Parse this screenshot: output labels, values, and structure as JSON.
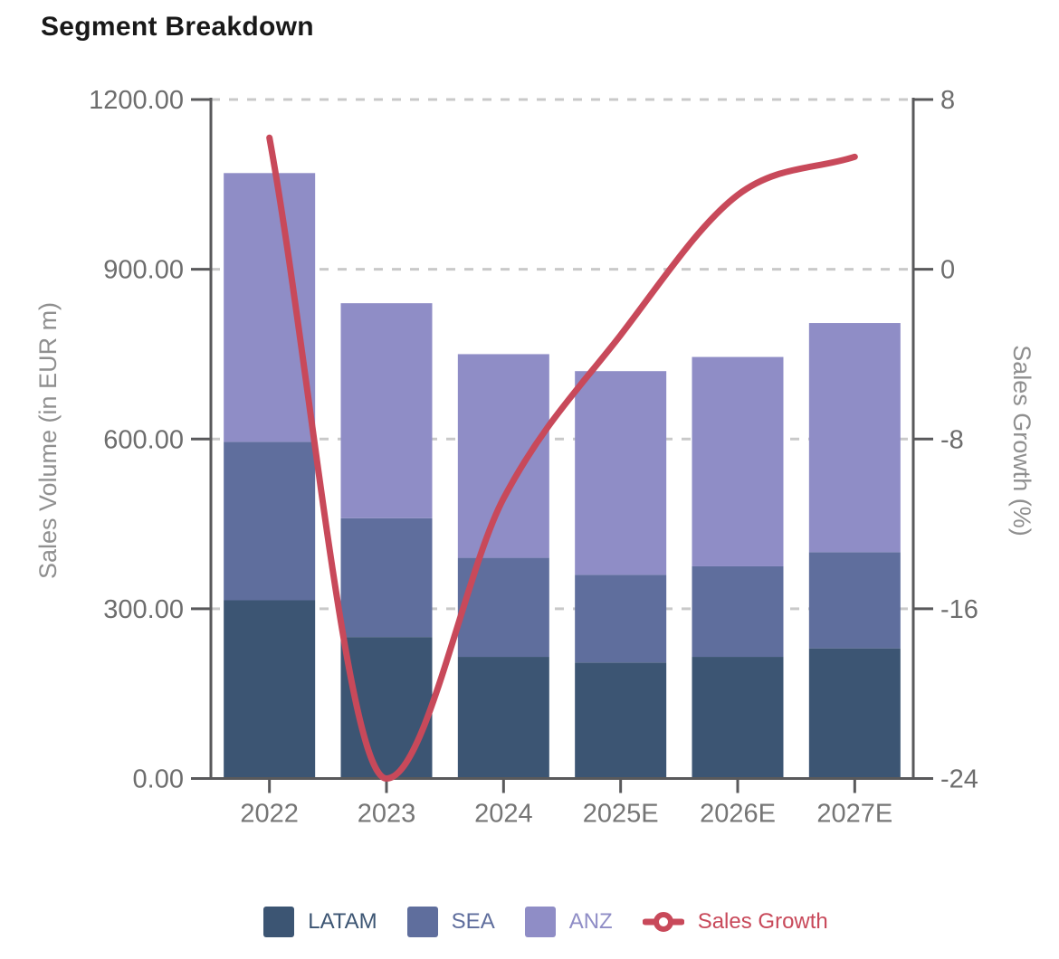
{
  "chart_data": {
    "type": "bar",
    "combo": "stacked bars with line on secondary axis",
    "title": "Segment Breakdown",
    "categories": [
      "2022",
      "2023",
      "2024",
      "2025E",
      "2026E",
      "2027E"
    ],
    "series": [
      {
        "name": "LATAM",
        "type": "bar",
        "stack": "volume",
        "color": "#3c5573",
        "values": [
          315,
          250,
          215,
          205,
          215,
          230
        ]
      },
      {
        "name": "SEA",
        "type": "bar",
        "stack": "volume",
        "color": "#5f6e9d",
        "values": [
          280,
          210,
          175,
          155,
          160,
          170
        ]
      },
      {
        "name": "ANZ",
        "type": "bar",
        "stack": "volume",
        "color": "#8f8dc6",
        "values": [
          475,
          380,
          360,
          360,
          370,
          405
        ]
      },
      {
        "name": "Sales Growth",
        "type": "line",
        "axis": "right",
        "color": "#c8495a",
        "values": [
          6.2,
          -24.0,
          -10.8,
          -3.1,
          3.5,
          5.3
        ]
      }
    ],
    "stack_totals": [
      1070,
      840,
      750,
      720,
      745,
      805
    ],
    "left_axis": {
      "label": "Sales Volume (in EUR m)",
      "min": 0,
      "max": 1200,
      "tick_labels": [
        "0.00",
        "300.00",
        "600.00",
        "900.00",
        "1200.00"
      ],
      "tick_values": [
        0,
        300,
        600,
        900,
        1200
      ]
    },
    "right_axis": {
      "label": "Sales Growth (%)",
      "min": -24,
      "max": 8,
      "tick_labels": [
        "-24",
        "-16",
        "-8",
        "0",
        "8"
      ],
      "tick_values": [
        -24,
        -16,
        -8,
        0,
        8
      ]
    },
    "grid": {
      "horizontal": "dashed",
      "color": "#c9c9c9"
    },
    "axis_line_color": "#59595b",
    "legend_position": "bottom"
  }
}
